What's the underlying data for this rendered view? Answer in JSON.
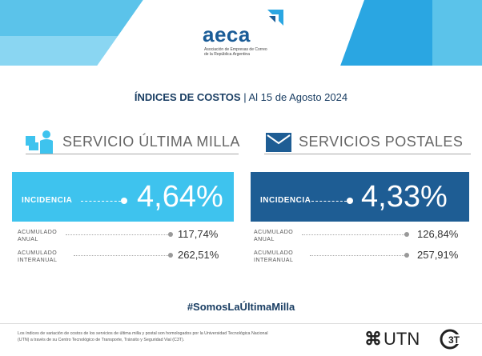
{
  "header": {
    "logo_word": "aeca",
    "logo_subtitle_line1": "Asociación de Empresas de Correo",
    "logo_subtitle_line2": "de la República Argentina"
  },
  "title": {
    "bold": "ÍNDICES DE COSTOS",
    "rest": " | Al 15 de Agosto 2024"
  },
  "sections": {
    "left": {
      "label": "SERVICIO ÚLTIMA MILLA",
      "icon": "delivery-person-icon"
    },
    "right": {
      "label": "SERVICIOS POSTALES",
      "icon": "envelope-icon"
    }
  },
  "cards": {
    "left": {
      "label": "INCIDENCIA",
      "value": "4,64%",
      "color": "#3ec3ee"
    },
    "right": {
      "label": "INCIDENCIA",
      "value": "4,33%",
      "color": "#1e5d94"
    }
  },
  "stats": {
    "left": [
      {
        "label_l1": "ACUMULADO",
        "label_l2": "ANUAL",
        "value": "117,74%"
      },
      {
        "label_l1": "ACUMULADO",
        "label_l2": "INTERANUAL",
        "value": "262,51%"
      }
    ],
    "right": [
      {
        "label_l1": "ACUMULADO",
        "label_l2": "ANUAL",
        "value": "126,84%"
      },
      {
        "label_l1": "ACUMULADO",
        "label_l2": "INTERANUAL",
        "value": "257,91%"
      }
    ]
  },
  "hashtag": "#SomosLaÚltimaMilla",
  "footer": {
    "text": "Los índices de variación de costos de los servicios de última milla y postal son homologados por la Universidad Tecnológica Nacional (UTN) a través de su Centro Tecnológico de Transporte, Tránsito y Seguridad Vial (C3T).",
    "utn": "UTN",
    "ct": "C3T"
  }
}
